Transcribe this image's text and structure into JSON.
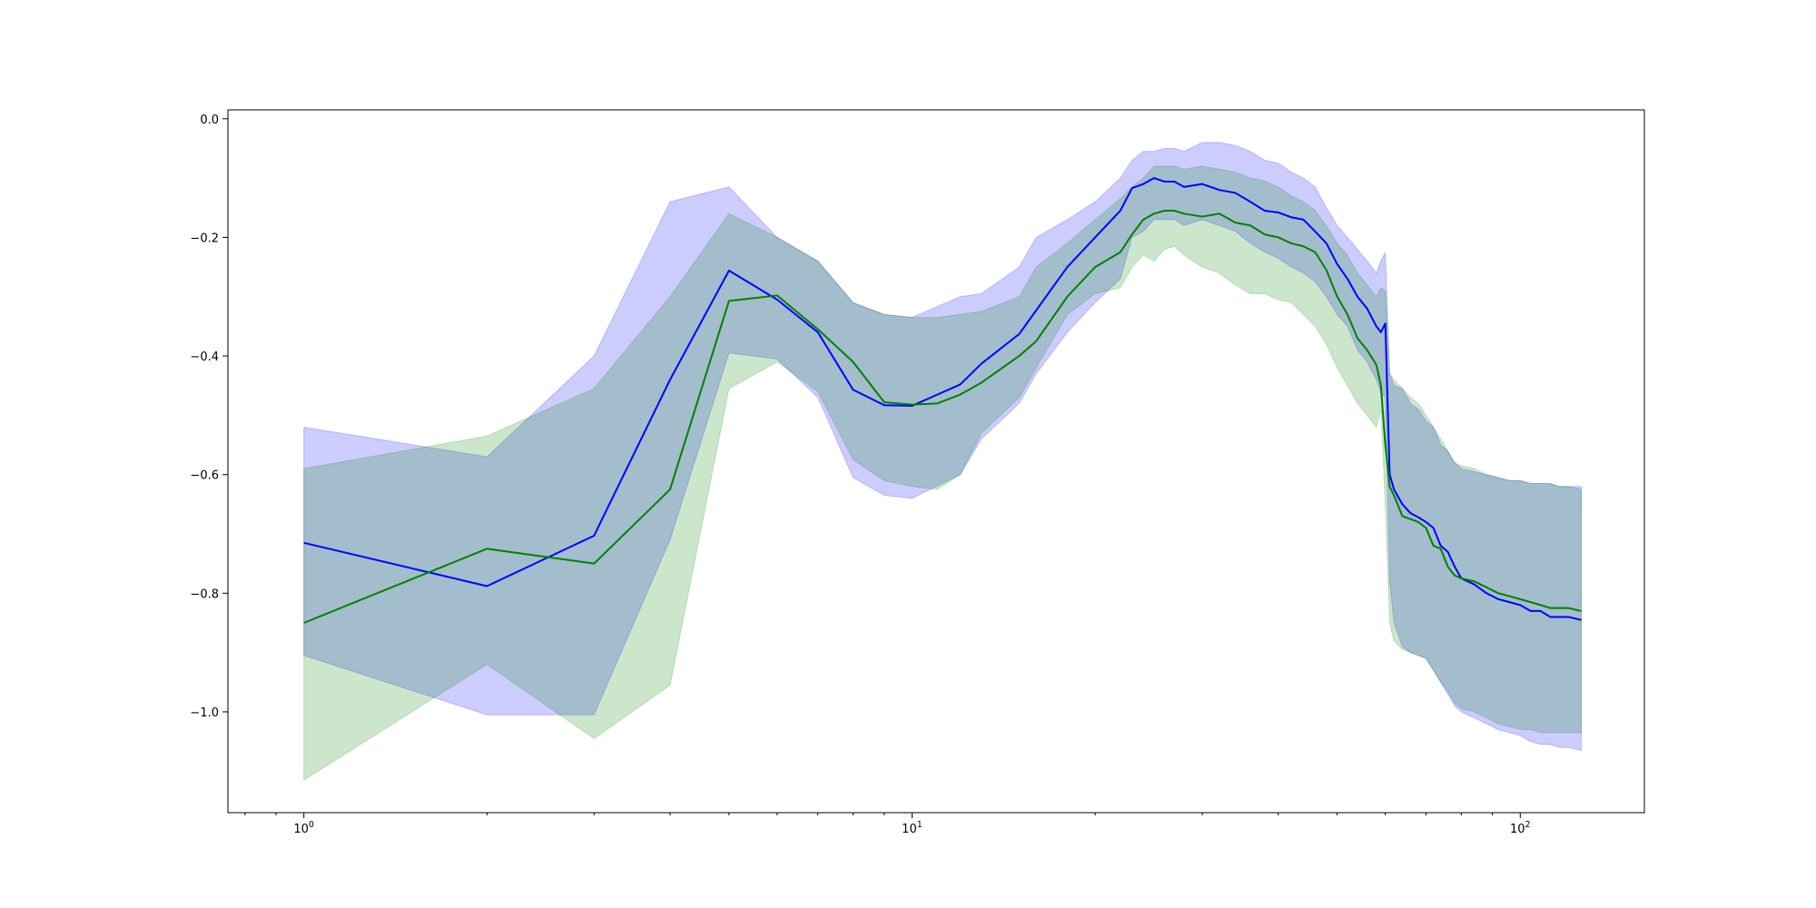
{
  "chart_data": {
    "type": "area",
    "title": "",
    "xlabel": "",
    "ylabel": "",
    "x_scale": "log",
    "xlim": [
      0.75,
      160
    ],
    "ylim": [
      -1.17,
      0.015
    ],
    "grid": false,
    "legend": "none",
    "x_ticks": [
      {
        "value": 1,
        "base": "10",
        "exp": "0"
      },
      {
        "value": 10,
        "base": "10",
        "exp": "1"
      },
      {
        "value": 100,
        "base": "10",
        "exp": "2"
      }
    ],
    "y_ticks": [
      {
        "value": 0.0,
        "label": "0.0"
      },
      {
        "value": -0.2,
        "label": "−0.2"
      },
      {
        "value": -0.4,
        "label": "−0.4"
      },
      {
        "value": -0.6,
        "label": "−0.6"
      },
      {
        "value": -0.8,
        "label": "−0.8"
      },
      {
        "value": -1.0,
        "label": "−1.0"
      }
    ],
    "series": [
      {
        "color": "#0000ff",
        "band_alpha": 0.2,
        "x": [
          1,
          2,
          3,
          4,
          5,
          6,
          7,
          8,
          9,
          10,
          12,
          13,
          15,
          16,
          18,
          20,
          22,
          23,
          24,
          25,
          26,
          27,
          28,
          30,
          32,
          34,
          36,
          38,
          40,
          42,
          44,
          46,
          48,
          50,
          52,
          54,
          56,
          58,
          59,
          60,
          61,
          62,
          64,
          66,
          68,
          70,
          72,
          74,
          76,
          78,
          80,
          84,
          88,
          92,
          96,
          100,
          104,
          108,
          112,
          116,
          120,
          126
        ],
        "y": [
          -0.715,
          -0.788,
          -0.703,
          -0.44,
          -0.256,
          -0.305,
          -0.36,
          -0.457,
          -0.483,
          -0.484,
          -0.448,
          -0.413,
          -0.363,
          -0.323,
          -0.25,
          -0.2,
          -0.155,
          -0.117,
          -0.11,
          -0.1,
          -0.106,
          -0.106,
          -0.115,
          -0.11,
          -0.12,
          -0.125,
          -0.14,
          -0.155,
          -0.158,
          -0.166,
          -0.17,
          -0.19,
          -0.21,
          -0.245,
          -0.27,
          -0.3,
          -0.32,
          -0.35,
          -0.36,
          -0.345,
          -0.6,
          -0.625,
          -0.65,
          -0.665,
          -0.672,
          -0.68,
          -0.69,
          -0.72,
          -0.73,
          -0.755,
          -0.775,
          -0.785,
          -0.8,
          -0.81,
          -0.815,
          -0.82,
          -0.83,
          -0.83,
          -0.84,
          -0.84,
          -0.84,
          -0.845
        ],
        "upper": [
          -0.52,
          -0.57,
          -0.4,
          -0.14,
          -0.115,
          -0.2,
          -0.24,
          -0.31,
          -0.33,
          -0.335,
          -0.3,
          -0.295,
          -0.25,
          -0.2,
          -0.17,
          -0.14,
          -0.1,
          -0.07,
          -0.055,
          -0.055,
          -0.05,
          -0.05,
          -0.055,
          -0.04,
          -0.04,
          -0.045,
          -0.055,
          -0.07,
          -0.075,
          -0.09,
          -0.1,
          -0.115,
          -0.15,
          -0.18,
          -0.2,
          -0.22,
          -0.24,
          -0.26,
          -0.24,
          -0.225,
          -0.43,
          -0.45,
          -0.455,
          -0.48,
          -0.49,
          -0.51,
          -0.52,
          -0.55,
          -0.56,
          -0.58,
          -0.59,
          -0.595,
          -0.6,
          -0.605,
          -0.61,
          -0.61,
          -0.615,
          -0.615,
          -0.615,
          -0.62,
          -0.62,
          -0.62
        ],
        "lower": [
          -0.905,
          -1.005,
          -1.005,
          -0.71,
          -0.395,
          -0.405,
          -0.47,
          -0.605,
          -0.635,
          -0.64,
          -0.6,
          -0.54,
          -0.48,
          -0.43,
          -0.36,
          -0.31,
          -0.27,
          -0.2,
          -0.19,
          -0.17,
          -0.17,
          -0.17,
          -0.18,
          -0.17,
          -0.18,
          -0.19,
          -0.21,
          -0.225,
          -0.235,
          -0.25,
          -0.26,
          -0.275,
          -0.3,
          -0.33,
          -0.35,
          -0.39,
          -0.41,
          -0.44,
          -0.46,
          -0.47,
          -0.78,
          -0.85,
          -0.89,
          -0.9,
          -0.905,
          -0.91,
          -0.93,
          -0.95,
          -0.97,
          -0.99,
          -1.0,
          -1.01,
          -1.02,
          -1.03,
          -1.035,
          -1.04,
          -1.05,
          -1.055,
          -1.055,
          -1.06,
          -1.06,
          -1.065
        ]
      },
      {
        "color": "#008000",
        "band_alpha": 0.2,
        "x": [
          1,
          2,
          3,
          4,
          5,
          6,
          7,
          8,
          9,
          10,
          11,
          12,
          13,
          15,
          16,
          18,
          20,
          22,
          23,
          24,
          25,
          26,
          27,
          28,
          30,
          32,
          34,
          36,
          38,
          40,
          42,
          44,
          46,
          48,
          50,
          52,
          54,
          56,
          58,
          59,
          60,
          61,
          62,
          64,
          66,
          68,
          70,
          72,
          74,
          76,
          78,
          80,
          84,
          88,
          92,
          96,
          100,
          104,
          108,
          112,
          116,
          120,
          126
        ],
        "y": [
          -0.85,
          -0.725,
          -0.75,
          -0.625,
          -0.307,
          -0.298,
          -0.355,
          -0.41,
          -0.478,
          -0.482,
          -0.48,
          -0.465,
          -0.445,
          -0.4,
          -0.375,
          -0.3,
          -0.25,
          -0.225,
          -0.195,
          -0.17,
          -0.16,
          -0.155,
          -0.155,
          -0.16,
          -0.165,
          -0.16,
          -0.175,
          -0.18,
          -0.195,
          -0.2,
          -0.21,
          -0.215,
          -0.225,
          -0.255,
          -0.3,
          -0.33,
          -0.37,
          -0.39,
          -0.415,
          -0.45,
          -0.55,
          -0.62,
          -0.635,
          -0.67,
          -0.675,
          -0.68,
          -0.69,
          -0.72,
          -0.725,
          -0.755,
          -0.77,
          -0.775,
          -0.78,
          -0.79,
          -0.8,
          -0.805,
          -0.81,
          -0.815,
          -0.82,
          -0.825,
          -0.825,
          -0.825,
          -0.83
        ],
        "upper": [
          -0.59,
          -0.535,
          -0.455,
          -0.3,
          -0.16,
          -0.2,
          -0.24,
          -0.31,
          -0.33,
          -0.335,
          -0.335,
          -0.33,
          -0.325,
          -0.3,
          -0.25,
          -0.21,
          -0.17,
          -0.135,
          -0.115,
          -0.1,
          -0.08,
          -0.08,
          -0.08,
          -0.085,
          -0.08,
          -0.085,
          -0.09,
          -0.1,
          -0.105,
          -0.115,
          -0.13,
          -0.14,
          -0.155,
          -0.18,
          -0.21,
          -0.23,
          -0.26,
          -0.28,
          -0.3,
          -0.285,
          -0.29,
          -0.43,
          -0.44,
          -0.455,
          -0.47,
          -0.48,
          -0.5,
          -0.52,
          -0.54,
          -0.56,
          -0.58,
          -0.585,
          -0.59,
          -0.6,
          -0.605,
          -0.61,
          -0.61,
          -0.615,
          -0.615,
          -0.615,
          -0.62,
          -0.62,
          -0.625
        ],
        "lower": [
          -1.115,
          -0.92,
          -1.045,
          -0.955,
          -0.455,
          -0.41,
          -0.46,
          -0.575,
          -0.61,
          -0.62,
          -0.625,
          -0.6,
          -0.53,
          -0.47,
          -0.42,
          -0.33,
          -0.295,
          -0.285,
          -0.25,
          -0.23,
          -0.24,
          -0.22,
          -0.215,
          -0.23,
          -0.25,
          -0.26,
          -0.28,
          -0.295,
          -0.295,
          -0.305,
          -0.31,
          -0.33,
          -0.35,
          -0.38,
          -0.42,
          -0.45,
          -0.48,
          -0.5,
          -0.52,
          -0.49,
          -0.65,
          -0.85,
          -0.88,
          -0.895,
          -0.9,
          -0.905,
          -0.91,
          -0.93,
          -0.95,
          -0.965,
          -0.985,
          -0.995,
          -1.0,
          -1.01,
          -1.02,
          -1.025,
          -1.03,
          -1.03,
          -1.035,
          -1.035,
          -1.035,
          -1.035,
          -1.035
        ]
      }
    ]
  }
}
